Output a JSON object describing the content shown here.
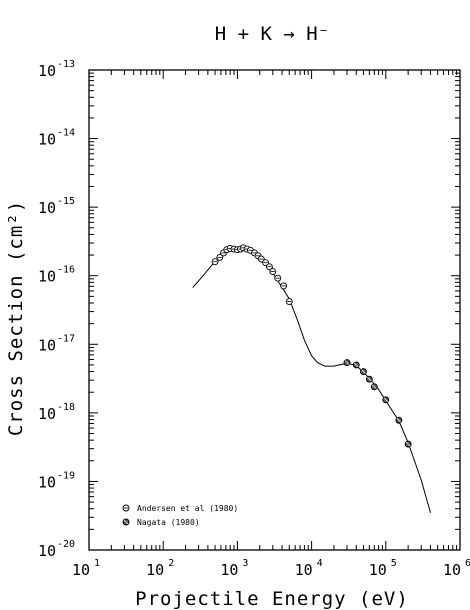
{
  "chart_data": {
    "type": "line",
    "title": "H + K → H⁻",
    "xlabel": "Projectile Energy (eV)",
    "ylabel": "Cross Section (cm²)",
    "xscale": "log",
    "yscale": "log",
    "xlim": [
      10,
      1000000
    ],
    "ylim": [
      1e-20,
      1e-13
    ],
    "grid": false,
    "legend_position": "bottom-left",
    "x_tick_labels": [
      {
        "base": "10",
        "exp": "1"
      },
      {
        "base": "10",
        "exp": "2"
      },
      {
        "base": "10",
        "exp": "3"
      },
      {
        "base": "10",
        "exp": "4"
      },
      {
        "base": "10",
        "exp": "5"
      },
      {
        "base": "10",
        "exp": "6"
      }
    ],
    "y_tick_labels": [
      {
        "base": "10",
        "exp": "-20"
      },
      {
        "base": "10",
        "exp": "-19"
      },
      {
        "base": "10",
        "exp": "-18"
      },
      {
        "base": "10",
        "exp": "-17"
      },
      {
        "base": "10",
        "exp": "-16"
      },
      {
        "base": "10",
        "exp": "-15"
      },
      {
        "base": "10",
        "exp": "-14"
      },
      {
        "base": "10",
        "exp": "-13"
      }
    ],
    "series": [
      {
        "name": "",
        "kind": "fit-curve",
        "x": [
          250,
          350,
          500,
          650,
          800,
          1000,
          1200,
          1500,
          2000,
          3000,
          5000,
          6500,
          8000,
          10000,
          12000,
          15000,
          20000,
          30000,
          40000,
          60000,
          80000,
          100000,
          150000,
          200000,
          300000,
          400000
        ],
        "y": [
          6.7e-17,
          1.02e-16,
          1.62e-16,
          2.15e-16,
          2.48e-16,
          2.55e-16,
          2.55e-16,
          2.38e-16,
          1.85e-16,
          1.1e-16,
          4.6e-17,
          2.2e-17,
          1.15e-17,
          6.8e-18,
          5.4e-18,
          4.8e-18,
          4.8e-18,
          5.3e-18,
          4.9e-18,
          3.2e-18,
          2.2e-18,
          1.5e-18,
          7.6e-19,
          3.7e-19,
          1.05e-19,
          3.5e-20
        ]
      },
      {
        "name": "Andersen et al (1980)",
        "marker": "circle-hatched",
        "x": [
          500,
          580,
          650,
          720,
          800,
          900,
          1000,
          1100,
          1200,
          1350,
          1500,
          1700,
          1900,
          2100,
          2400,
          2700,
          3000,
          3500,
          4200,
          5000
        ],
        "y": [
          1.6e-16,
          1.85e-16,
          2.15e-16,
          2.4e-16,
          2.5e-16,
          2.45e-16,
          2.4e-16,
          2.45e-16,
          2.55e-16,
          2.45e-16,
          2.35e-16,
          2.15e-16,
          1.95e-16,
          1.75e-16,
          1.55e-16,
          1.35e-16,
          1.15e-16,
          9.2e-17,
          7.1e-17,
          4.2e-17
        ]
      },
      {
        "name": "Nagata (1980)",
        "marker": "circle-filled",
        "x": [
          30000,
          40000,
          50000,
          60000,
          70000,
          100000,
          150000,
          200000
        ],
        "y": [
          5.4e-18,
          5e-18,
          4e-18,
          3.1e-18,
          2.4e-18,
          1.55e-18,
          7.8e-19,
          3.5e-19
        ]
      }
    ]
  }
}
